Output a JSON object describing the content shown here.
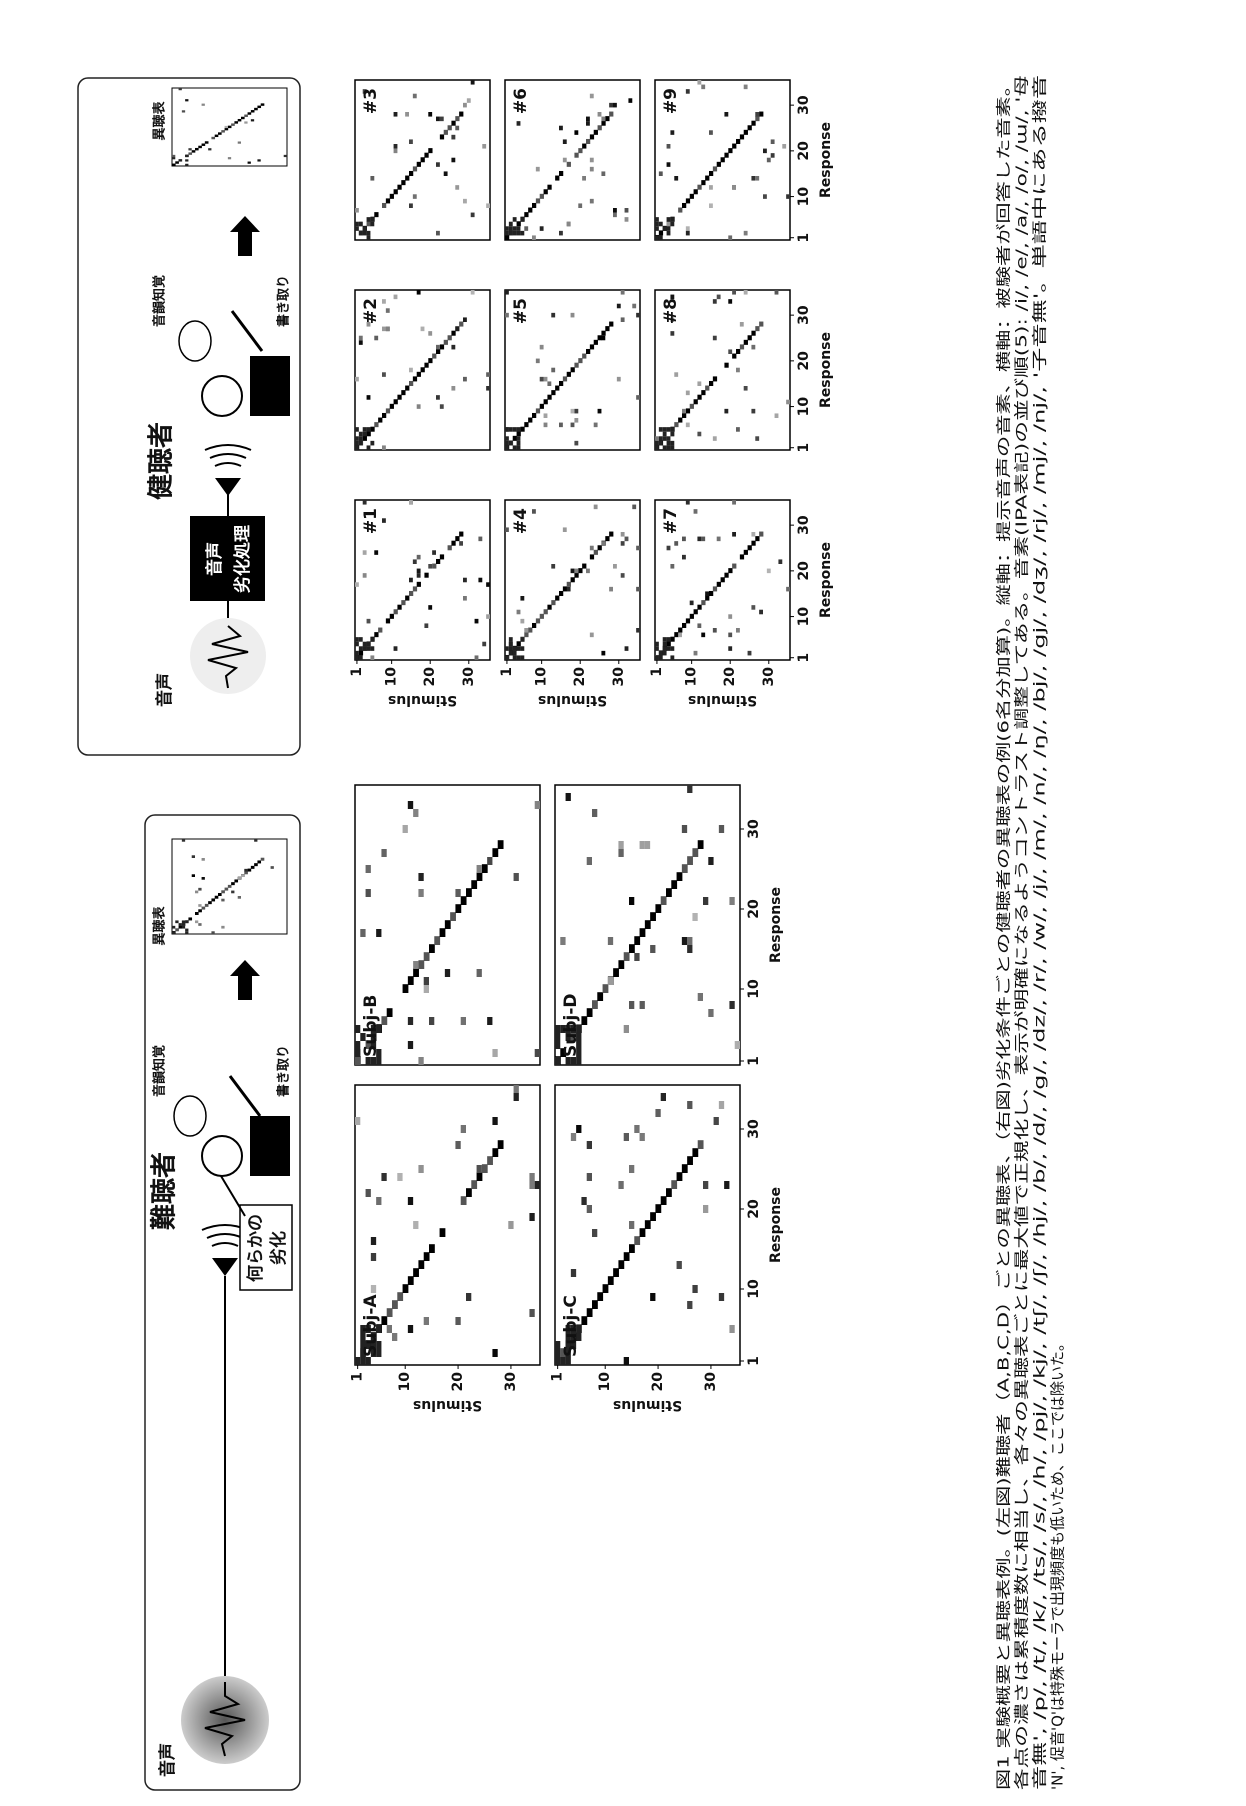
{
  "left_panel": {
    "source": "音声",
    "subject": "難聴者",
    "perception": "音韻知覚",
    "transcription": "書き取り",
    "result": "異聴表",
    "degradation": [
      "何らかの",
      "劣化"
    ]
  },
  "right_panel": {
    "source": "音声",
    "processing": [
      "音声",
      "劣化処理"
    ],
    "subject": "健聴者",
    "perception": "音韻知覚",
    "transcription": "書き取り",
    "result": "異聴表"
  },
  "axes": {
    "x_label": "Response",
    "y_label": "Stimulus",
    "xticks": [
      1,
      10,
      20,
      30
    ],
    "yticks": [
      1,
      10,
      20,
      30
    ]
  },
  "left_matrices": {
    "labels": [
      "Subj-A",
      "Subj-B",
      "Subj-C",
      "Subj-D"
    ]
  },
  "right_matrices": {
    "labels": [
      "#1",
      "#2",
      "#3",
      "#4",
      "#5",
      "#6",
      "#7",
      "#8",
      "#9"
    ]
  },
  "caption": [
    "図1 実験概要と異聴表例。(左図)難聴者（A,B,C,D）ごとの異聴表、（右図)劣化条件ごとの健聴者の異聴表の例(6名分加算)。縦軸：提示音声の音素、横軸：被験者が回答した音素。",
    "各点の濃さは累積度数に相当し、各々の異聴表ごとに最大値で正規化し、表示が明確になるようコントラスト調整してある。音素(IPA表記)の並び順(5): /i/, /e/, /a/, /o/, /ɯ/, '母",
    "音無', /p/, /t/, /k/, /ts/, /s/, /h/, /pj/, /kj/, /tʃ/, /ʃ/, /hj/, /b/, /d/, /g/, /dz/, /r/, /w/, /j/, /m/, /n/, /ŋ/, /bj/, /gj/, /dʒ/, /rj/, /mj/, /nj/, '子音無'。単語中にある撥音",
    "'N', 促音'Q'は特殊モーラで出現頻度も低いため、ここでは除いた。"
  ]
}
